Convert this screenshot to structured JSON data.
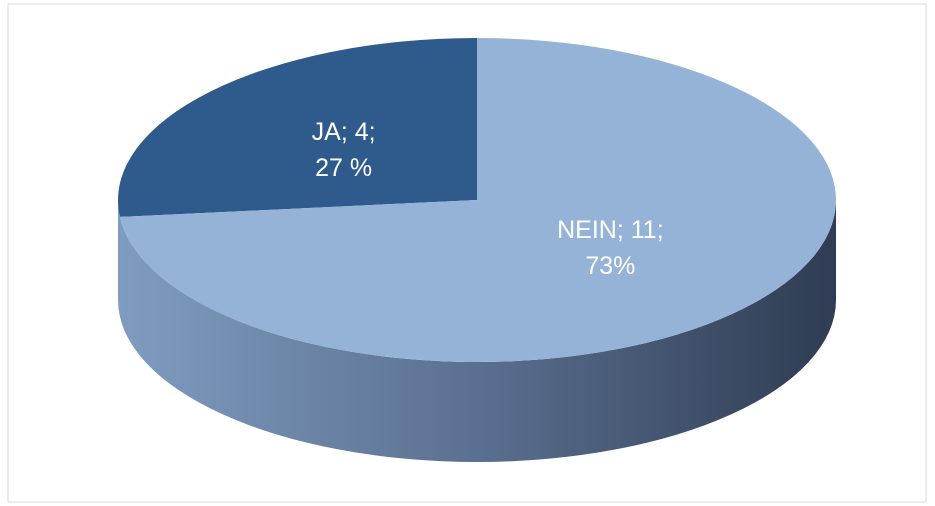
{
  "chart_data": {
    "type": "pie",
    "categories": [
      "JA",
      "NEIN"
    ],
    "values": [
      4,
      11
    ],
    "value_labels": [
      [
        "JA; 4;",
        "27 %"
      ],
      [
        "NEIN; 11;",
        "73%"
      ]
    ],
    "colors": [
      "#2f5a8c",
      "#95b3d7"
    ],
    "three_d": true
  }
}
